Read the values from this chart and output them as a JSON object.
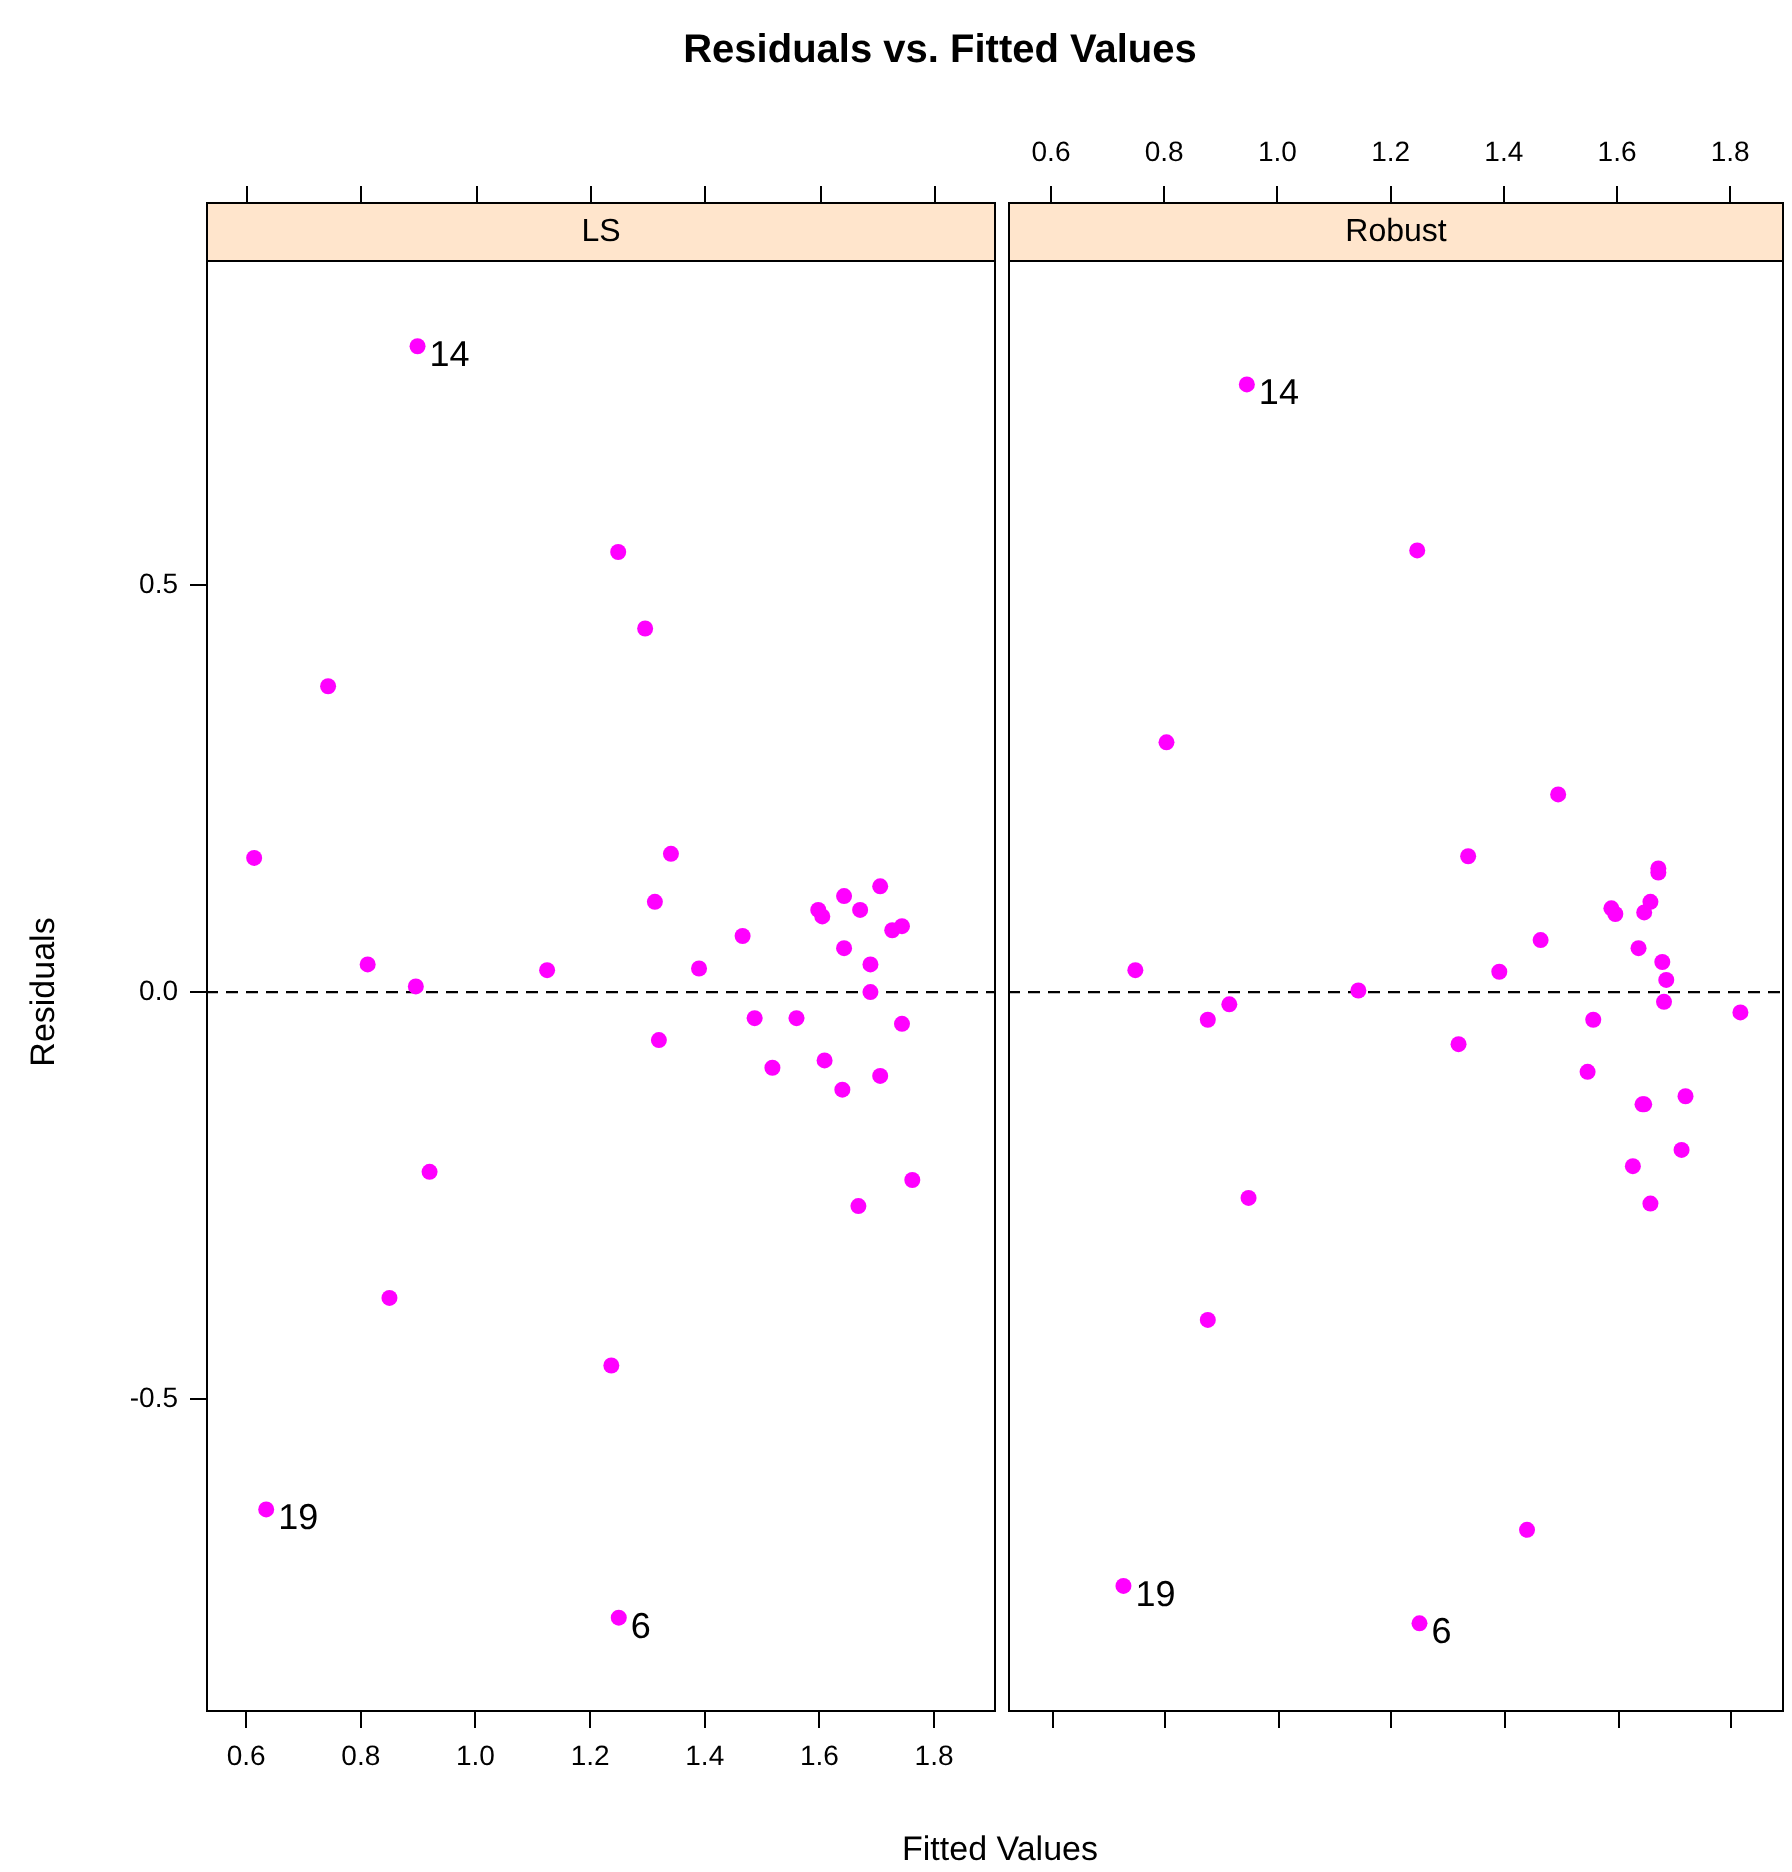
{
  "chart_data": [
    {
      "type": "scatter",
      "title": "Residuals vs. Fitted Values",
      "subtitle": "LS",
      "xlabel": "Fitted Values",
      "ylabel": "Residuals",
      "color": "#ff00ff",
      "marker": "circle",
      "grid": false,
      "legend": false,
      "x": [
        0.614,
        0.743,
        0.812,
        0.899,
        0.896,
        0.92,
        0.85,
        0.635,
        1.125,
        1.249,
        1.296,
        1.341,
        1.313,
        1.32,
        1.39,
        1.466,
        1.487,
        1.518,
        1.56,
        1.598,
        1.605,
        1.609,
        1.643,
        1.643,
        1.64,
        1.671,
        1.668,
        1.689,
        1.689,
        1.706,
        1.706,
        1.727,
        1.744,
        1.744,
        1.762,
        1.237,
        1.25
      ],
      "values": [
        0.165,
        0.376,
        0.034,
        0.794,
        0.007,
        -0.221,
        -0.376,
        -0.636,
        0.027,
        0.541,
        0.447,
        0.17,
        0.111,
        -0.059,
        0.029,
        0.069,
        -0.032,
        -0.093,
        -0.032,
        0.101,
        0.093,
        -0.084,
        0.118,
        0.054,
        -0.12,
        0.101,
        -0.263,
        0.034,
        0,
        0.13,
        -0.103,
        0.076,
        0.081,
        -0.039,
        -0.231,
        -0.459,
        -0.769
      ],
      "xlim": [
        0.53,
        1.908
      ],
      "xticks": [
        0.6,
        0.8,
        {
          "value": 1,
          "label": "1.0"
        },
        1.2,
        1.4,
        1.6,
        1.8
      ],
      "ylim": [
        -0.885,
        0.9
      ],
      "yticks": [
        -0.5,
        {
          "value": 0,
          "label": "0.0"
        },
        0.5
      ],
      "ref_lines": [
        {
          "axis": "y",
          "value": 0,
          "line_style": "dashed",
          "color": "#000000"
        }
      ],
      "annotations": [
        {
          "text": "14",
          "x": 0.899,
          "y": 0.794
        },
        {
          "text": "19",
          "x": 0.635,
          "y": -0.636
        },
        {
          "text": "6",
          "x": 1.25,
          "y": -0.769
        }
      ]
    },
    {
      "type": "scatter",
      "subtitle": "Robust",
      "color": "#ff00ff",
      "marker": "circle",
      "grid": false,
      "legend": false,
      "tick_labels": "x",
      "x": [
        0.946,
        1.247,
        0.804,
        1.496,
        1.337,
        1.673,
        1.673,
        1.59,
        1.597,
        1.659,
        1.648,
        1.465,
        1.638,
        1.68,
        1.687,
        1.392,
        0.749,
        1.143,
        0.915,
        0.877,
        1.683,
        1.818,
        1.558,
        1.32,
        1.548,
        1.648,
        1.645,
        1.721,
        1.628,
        1.714,
        1.659,
        0.949,
        0.877,
        1.441,
        0.728,
        1.251
      ],
      "values": [
        0.747,
        0.543,
        0.307,
        0.243,
        0.167,
        0.152,
        0.147,
        0.103,
        0.096,
        0.111,
        0.098,
        0.064,
        0.054,
        0.037,
        0.015,
        0.025,
        0.027,
        0.002,
        -0.015,
        -0.034,
        -0.012,
        -0.025,
        -0.034,
        -0.064,
        -0.098,
        -0.138,
        -0.138,
        -0.128,
        -0.214,
        -0.194,
        -0.26,
        -0.253,
        -0.403,
        -0.661,
        -0.73,
        -0.776
      ],
      "xlim": [
        0.524,
        1.895
      ],
      "xticks": [
        0.6,
        0.8,
        {
          "value": 1,
          "label": "1.0"
        },
        1.2,
        1.4,
        1.6,
        1.8
      ],
      "ylim": [
        -0.885,
        0.9
      ],
      "ref_lines": [
        {
          "axis": "y",
          "value": 0,
          "line_style": "dashed",
          "color": "#000000"
        }
      ],
      "annotations": [
        {
          "text": "14",
          "x": 0.946,
          "y": 0.747
        },
        {
          "text": "19",
          "x": 0.728,
          "y": -0.73
        },
        {
          "text": "6",
          "x": 1.251,
          "y": -0.776
        }
      ]
    }
  ]
}
